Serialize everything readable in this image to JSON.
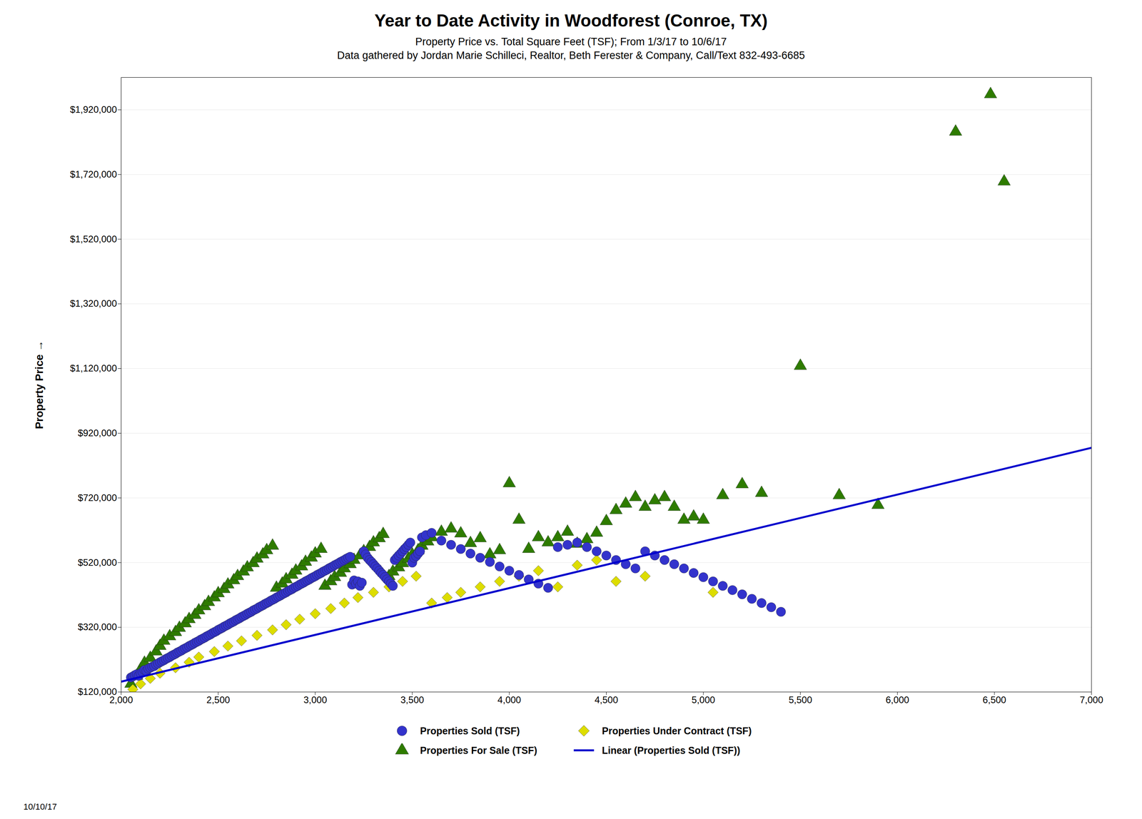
{
  "chart_data": {
    "type": "scatter",
    "title": "Year to Date Activity in Woodforest (Conroe, TX)",
    "subtitle": [
      "Property Price vs. Total Square Feet (TSF); From 1/3/17 to 10/6/17",
      "Data gathered by Jordan Marie Schilleci, Realtor, Beth Ferester & Company, Call/Text 832-493-6685"
    ],
    "ylabel": "Property Price",
    "annotations": [
      "10/10/17"
    ],
    "xlim": [
      2000,
      7000
    ],
    "ylim": [
      120000,
      2020000
    ],
    "xticks": [
      {
        "value": 2000,
        "label": "2,000"
      },
      {
        "value": 2500,
        "label": "2,500"
      },
      {
        "value": 3000,
        "label": "3,000"
      },
      {
        "value": 3500,
        "label": "3,500"
      },
      {
        "value": 4000,
        "label": "4,000"
      },
      {
        "value": 4500,
        "label": "4,500"
      },
      {
        "value": 5000,
        "label": "5,000"
      },
      {
        "value": 5500,
        "label": "5,500"
      },
      {
        "value": 6000,
        "label": "6,000"
      },
      {
        "value": 6500,
        "label": "6,500"
      },
      {
        "value": 7000,
        "label": "7,000"
      }
    ],
    "yticks": [
      {
        "value": 120000,
        "label": "$120,000"
      },
      {
        "value": 320000,
        "label": "$320,000"
      },
      {
        "value": 520000,
        "label": "$520,000"
      },
      {
        "value": 720000,
        "label": "$720,000"
      },
      {
        "value": 920000,
        "label": "$920,000"
      },
      {
        "value": 1120000,
        "label": "$1,120,000"
      },
      {
        "value": 1320000,
        "label": "$1,320,000"
      },
      {
        "value": 1520000,
        "label": "$1,520,000"
      },
      {
        "value": 1720000,
        "label": "$1,720,000"
      },
      {
        "value": 1920000,
        "label": "$1,920,000"
      }
    ],
    "grid": "y",
    "legend": "bottom",
    "series": [
      {
        "name": "Properties Sold  (TSF)",
        "type": "scatter",
        "marker": "circle",
        "color": "#3333CC",
        "x": [
          2050,
          2060,
          2070,
          2080,
          2090,
          2100,
          2110,
          2120,
          2130,
          2140,
          2150,
          2160,
          2170,
          2180,
          2190,
          2200,
          2210,
          2220,
          2230,
          2240,
          2250,
          2260,
          2270,
          2280,
          2290,
          2300,
          2310,
          2320,
          2330,
          2340,
          2350,
          2360,
          2370,
          2380,
          2390,
          2400,
          2410,
          2420,
          2430,
          2440,
          2450,
          2460,
          2470,
          2480,
          2490,
          2500,
          2510,
          2520,
          2530,
          2540,
          2550,
          2560,
          2570,
          2580,
          2590,
          2600,
          2610,
          2620,
          2630,
          2640,
          2650,
          2660,
          2670,
          2680,
          2690,
          2700,
          2710,
          2720,
          2730,
          2740,
          2750,
          2760,
          2770,
          2780,
          2790,
          2800,
          2810,
          2820,
          2830,
          2840,
          2850,
          2860,
          2870,
          2880,
          2890,
          2900,
          2910,
          2920,
          2930,
          2940,
          2950,
          2960,
          2970,
          2980,
          2990,
          3000,
          3010,
          3020,
          3030,
          3040,
          3050,
          3060,
          3070,
          3080,
          3090,
          3100,
          3110,
          3120,
          3130,
          3140,
          3150,
          3160,
          3170,
          3180,
          3190,
          3200,
          3210,
          3220,
          3230,
          3240,
          3250,
          3260,
          3270,
          3280,
          3290,
          3300,
          3310,
          3320,
          3330,
          3340,
          3350,
          3360,
          3370,
          3380,
          3390,
          3400,
          3410,
          3420,
          3430,
          3440,
          3450,
          3460,
          3470,
          3480,
          3490,
          3500,
          3510,
          3520,
          3530,
          3540,
          3550,
          3570,
          3600,
          3650,
          3700,
          3750,
          3800,
          3850,
          3900,
          3950,
          4000,
          4050,
          4100,
          4150,
          4200,
          4250,
          4300,
          4350,
          4400,
          4450,
          4500,
          4550,
          4600,
          4650,
          4700,
          4750,
          4800,
          4850,
          4900,
          4950,
          5000,
          5050,
          5100,
          5150,
          5200,
          5250,
          5300,
          5350,
          5400
        ],
        "values": [
          165000,
          168000,
          172000,
          175000,
          170000,
          178000,
          182000,
          188000,
          185000,
          192000,
          195000,
          198000,
          200000,
          205000,
          208000,
          212000,
          215000,
          218000,
          222000,
          225000,
          228000,
          232000,
          235000,
          238000,
          242000,
          245000,
          248000,
          252000,
          255000,
          258000,
          262000,
          265000,
          268000,
          272000,
          275000,
          278000,
          282000,
          285000,
          288000,
          292000,
          295000,
          298000,
          302000,
          305000,
          308000,
          312000,
          315000,
          318000,
          322000,
          325000,
          328000,
          332000,
          335000,
          338000,
          342000,
          345000,
          348000,
          352000,
          355000,
          358000,
          362000,
          365000,
          368000,
          372000,
          375000,
          378000,
          382000,
          385000,
          388000,
          392000,
          395000,
          398000,
          402000,
          405000,
          408000,
          412000,
          415000,
          418000,
          422000,
          425000,
          428000,
          432000,
          435000,
          438000,
          442000,
          445000,
          448000,
          452000,
          455000,
          458000,
          462000,
          465000,
          468000,
          472000,
          475000,
          478000,
          482000,
          485000,
          488000,
          492000,
          495000,
          498000,
          502000,
          505000,
          508000,
          512000,
          515000,
          518000,
          522000,
          525000,
          528000,
          532000,
          535000,
          538000,
          452000,
          465000,
          455000,
          462000,
          448000,
          458000,
          555000,
          545000,
          535000,
          528000,
          522000,
          515000,
          508000,
          502000,
          495000,
          488000,
          482000,
          475000,
          468000,
          462000,
          455000,
          448000,
          528000,
          535000,
          542000,
          548000,
          555000,
          562000,
          568000,
          575000,
          582000,
          520000,
          535000,
          540000,
          548000,
          555000,
          598000,
          605000,
          612000,
          588000,
          575000,
          562000,
          548000,
          535000,
          522000,
          508000,
          495000,
          482000,
          468000,
          455000,
          442000,
          568000,
          575000,
          582000,
          568000,
          555000,
          542000,
          528000,
          515000,
          502000,
          555000,
          542000,
          528000,
          515000,
          502000,
          488000,
          475000,
          462000,
          448000,
          435000,
          422000,
          408000,
          395000,
          382000,
          368000
        ]
      },
      {
        "name": "Properties Under Contract  (TSF)",
        "type": "scatter",
        "marker": "diamond",
        "color": "#DDDD00",
        "x": [
          2060,
          2100,
          2150,
          2200,
          2280,
          2350,
          2400,
          2480,
          2550,
          2620,
          2700,
          2780,
          2850,
          2920,
          3000,
          3080,
          3150,
          3220,
          3300,
          3380,
          3450,
          3520,
          3600,
          3680,
          3750,
          3850,
          3950,
          4050,
          4150,
          4250,
          4350,
          4450,
          4550,
          4700,
          5050
        ],
        "values": [
          128000,
          145000,
          162000,
          178000,
          195000,
          212000,
          228000,
          245000,
          262000,
          278000,
          295000,
          312000,
          328000,
          345000,
          362000,
          378000,
          395000,
          412000,
          428000,
          445000,
          462000,
          478000,
          395000,
          412000,
          428000,
          445000,
          462000,
          478000,
          495000,
          445000,
          512000,
          528000,
          462000,
          478000,
          428000
        ]
      },
      {
        "name": "Properties For Sale  (TSF)",
        "type": "scatter",
        "marker": "triangle",
        "color": "#2E7B00",
        "x": [
          2050,
          2080,
          2100,
          2120,
          2150,
          2180,
          2200,
          2220,
          2250,
          2280,
          2300,
          2330,
          2350,
          2380,
          2400,
          2430,
          2450,
          2480,
          2500,
          2530,
          2550,
          2580,
          2600,
          2630,
          2650,
          2680,
          2700,
          2730,
          2750,
          2780,
          2800,
          2830,
          2850,
          2880,
          2900,
          2930,
          2950,
          2980,
          3000,
          3030,
          3050,
          3080,
          3100,
          3130,
          3150,
          3180,
          3200,
          3230,
          3250,
          3280,
          3300,
          3330,
          3350,
          3380,
          3400,
          3430,
          3450,
          3480,
          3500,
          3530,
          3550,
          3580,
          3600,
          3650,
          3700,
          3750,
          3800,
          3850,
          3900,
          3950,
          4000,
          4050,
          4100,
          4150,
          4200,
          4250,
          4300,
          4350,
          4400,
          4450,
          4500,
          4550,
          4600,
          4650,
          4700,
          4750,
          4800,
          4850,
          4900,
          4950,
          5000,
          5100,
          5200,
          5300,
          5500,
          5700,
          5900,
          6300,
          6480,
          6550
        ],
        "values": [
          145000,
          170000,
          190000,
          210000,
          225000,
          245000,
          262000,
          278000,
          292000,
          305000,
          318000,
          332000,
          345000,
          358000,
          372000,
          385000,
          398000,
          412000,
          425000,
          438000,
          452000,
          465000,
          478000,
          492000,
          505000,
          518000,
          532000,
          545000,
          558000,
          572000,
          442000,
          455000,
          468000,
          482000,
          495000,
          508000,
          522000,
          535000,
          548000,
          562000,
          448000,
          462000,
          475000,
          488000,
          502000,
          515000,
          528000,
          542000,
          555000,
          568000,
          582000,
          595000,
          608000,
          478000,
          492000,
          505000,
          518000,
          532000,
          545000,
          558000,
          572000,
          585000,
          598000,
          615000,
          625000,
          610000,
          580000,
          595000,
          545000,
          558000,
          765000,
          652000,
          562000,
          598000,
          582000,
          598000,
          615000,
          578000,
          592000,
          612000,
          648000,
          682000,
          702000,
          722000,
          692000,
          712000,
          722000,
          692000,
          652000,
          662000,
          652000,
          728000,
          762000,
          735000,
          1128000,
          728000,
          698000,
          1852000,
          1968000,
          1698000
        ]
      },
      {
        "name": "Linear  (Properties Sold  (TSF))",
        "type": "line",
        "line_style": "solid",
        "color": "#0000CC",
        "x": [
          2000,
          7000
        ],
        "values": [
          152000,
          875000
        ]
      }
    ]
  }
}
